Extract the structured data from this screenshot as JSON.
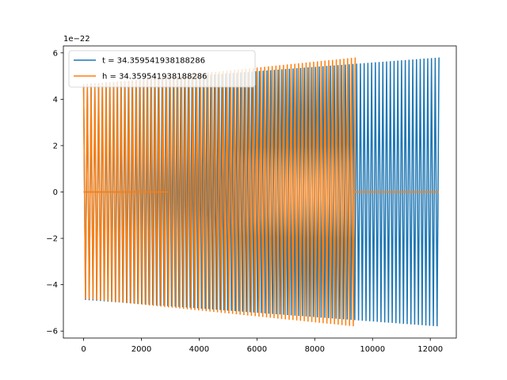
{
  "chart_data": {
    "type": "line",
    "title": "",
    "xlabel": "",
    "ylabel": "",
    "xlim": [
      -700,
      12900
    ],
    "ylim": [
      -6.3,
      6.3
    ],
    "y_offset_label": "1e−22",
    "x_ticks": [
      0,
      2000,
      4000,
      6000,
      8000,
      10000,
      12000
    ],
    "x_tick_labels": [
      "0",
      "2000",
      "4000",
      "6000",
      "8000",
      "10000",
      "12000"
    ],
    "y_ticks": [
      -6,
      -4,
      -2,
      0,
      2,
      4,
      6
    ],
    "y_tick_labels": [
      "−6",
      "−4",
      "−2",
      "0",
      "2",
      "4",
      "6"
    ],
    "legend_position": "top-left",
    "grid": false,
    "series": [
      {
        "name": "t = 34.359541938188286",
        "color": "#1f77b4",
        "description": "oscillation",
        "x_start": 0,
        "x_end": 12300,
        "cycles": 95,
        "upper_envelope_start": 4.65,
        "upper_envelope_end": 5.8,
        "lower_envelope_start": -4.65,
        "lower_envelope_end": -5.8,
        "zero_until": 2900,
        "zero_from": null
      },
      {
        "name": "h = 34.359541938188286",
        "color": "#ff7f0e",
        "description": "oscillation",
        "x_start": 0,
        "x_end": 12300,
        "cycles": 72,
        "upper_envelope_start": 4.6,
        "upper_envelope_end": 5.8,
        "lower_envelope_start": -4.6,
        "lower_envelope_end": -5.8,
        "zero_until": 2900,
        "zero_from": 9400,
        "active_from": 0,
        "active_until": 9400
      }
    ]
  }
}
